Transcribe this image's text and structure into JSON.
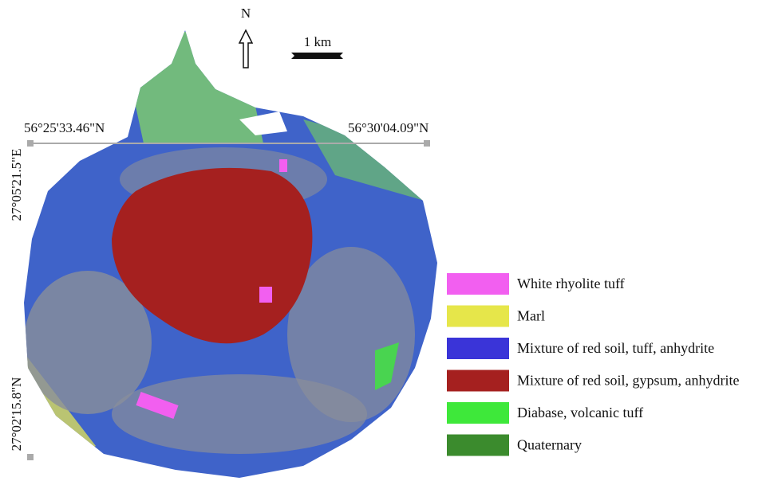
{
  "north_label": "N",
  "scale_label": "1 km",
  "coordinates": {
    "top_left": "56°25'33.46\"N",
    "top_right": "56°30'04.09\"N",
    "left_upper": "27°05'21.5\"E",
    "left_lower": "27°02'15.8\"N"
  },
  "legend": [
    {
      "label": "White rhyolite tuff",
      "color": "#f25ff0"
    },
    {
      "label": "Marl",
      "color": "#e6e64a"
    },
    {
      "label": "Mixture of red soil, tuff, anhydrite",
      "color": "#3a34d8"
    },
    {
      "label": "Mixture of red soil, gypsum, anhydrite",
      "color": "#a5201f"
    },
    {
      "label": "Diabase, volcanic tuff",
      "color": "#3ee83a"
    },
    {
      "label": "Quaternary",
      "color": "#3b8b2d"
    }
  ]
}
